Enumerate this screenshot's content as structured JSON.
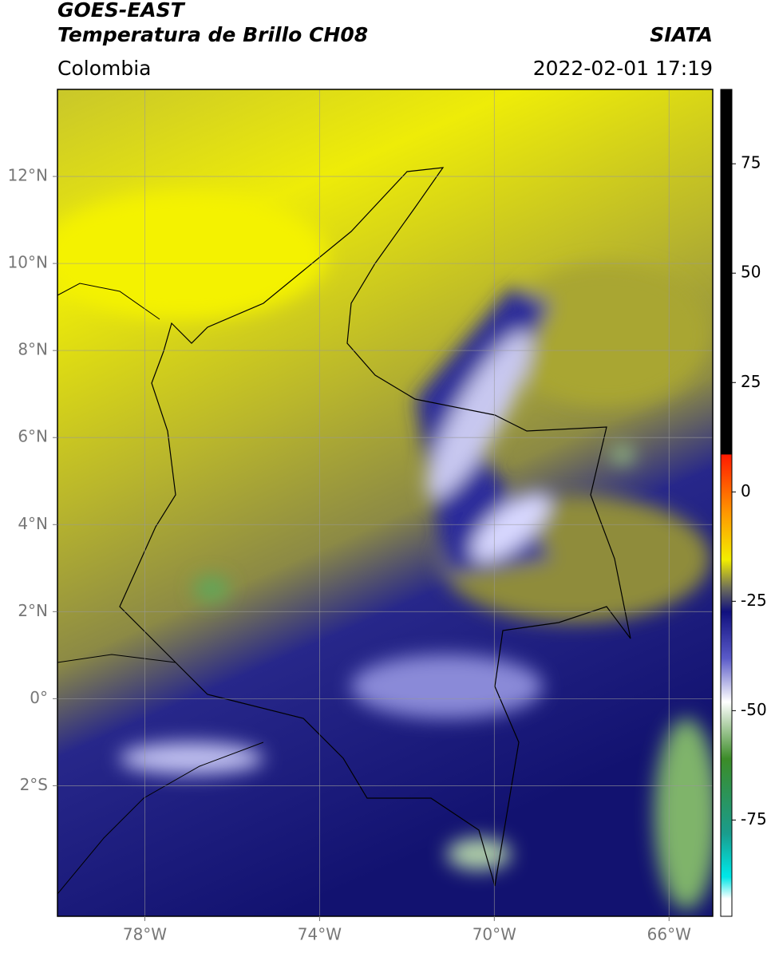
{
  "header": {
    "title": "GOES-EAST",
    "subtitle": "Temperatura de Brillo CH08",
    "source": "SIATA",
    "region": "Colombia",
    "timestamp": "2022-02-01 17:19"
  },
  "map": {
    "xlim": [
      -80,
      -65
    ],
    "ylim": [
      -5,
      14
    ],
    "xticks": [
      {
        "value": -78,
        "label": "78°W"
      },
      {
        "value": -74,
        "label": "74°W"
      },
      {
        "value": -70,
        "label": "70°W"
      },
      {
        "value": -66,
        "label": "66°W"
      }
    ],
    "yticks": [
      {
        "value": 12,
        "label": "12°N"
      },
      {
        "value": 10,
        "label": "10°N"
      },
      {
        "value": 8,
        "label": "8°N"
      },
      {
        "value": 6,
        "label": "6°N"
      },
      {
        "value": 4,
        "label": "4°N"
      },
      {
        "value": 2,
        "label": "2°N"
      },
      {
        "value": 0,
        "label": "0°"
      },
      {
        "value": -2,
        "label": "2°S"
      }
    ],
    "grid": true
  },
  "colorbar": {
    "lim": [
      -97,
      92
    ],
    "ticks": [
      75,
      50,
      25,
      0,
      -25,
      -50,
      -75
    ],
    "colormap": [
      {
        "value": 92,
        "color": "#000000"
      },
      {
        "value": 8.6,
        "color": "#000000"
      },
      {
        "value": 8.5,
        "color": "#ff1a00"
      },
      {
        "value": -5,
        "color": "#ff9900"
      },
      {
        "value": -15.5,
        "color": "#f2ee00"
      },
      {
        "value": -22,
        "color": "#6e6e5a"
      },
      {
        "value": -27.4,
        "color": "#10107e"
      },
      {
        "value": -38,
        "color": "#5a5ac8"
      },
      {
        "value": -48,
        "color": "#ffffff"
      },
      {
        "value": -61,
        "color": "#3c8c28"
      },
      {
        "value": -78,
        "color": "#1a9c8c"
      },
      {
        "value": -87.6,
        "color": "#00e6e6"
      },
      {
        "value": -88,
        "color": "#00e6e6"
      },
      {
        "value": -93,
        "color": "#ffffff"
      },
      {
        "value": -97,
        "color": "#ffffff"
      }
    ]
  }
}
